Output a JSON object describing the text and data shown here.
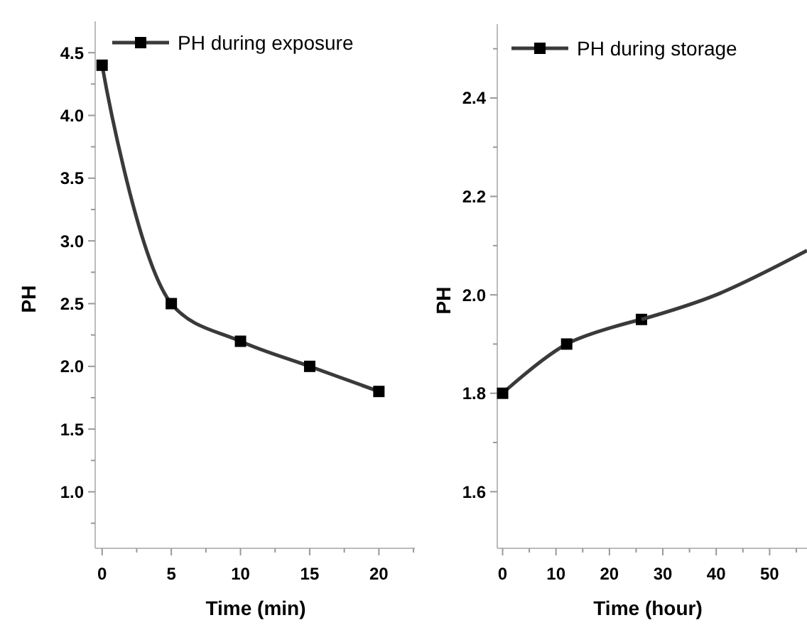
{
  "chart_data": [
    {
      "type": "line",
      "xlabel": "Time (min)",
      "ylabel": "PH",
      "legend": "top",
      "marker": "square",
      "line_style": "solid",
      "xlim": [
        -0.5,
        22.6
      ],
      "xticks": [
        0,
        {
          "value": 2.5,
          "label": null
        },
        5,
        {
          "value": 7.5,
          "label": null
        },
        10,
        {
          "value": 12.5,
          "label": null
        },
        15,
        {
          "value": 17.5,
          "label": null
        },
        20,
        {
          "value": 22.5,
          "label": null
        }
      ],
      "ylim": [
        0.55,
        4.75
      ],
      "yticks": [
        {
          "value": 1,
          "label": "1.0"
        },
        {
          "value": 0.75,
          "label": null
        },
        {
          "value": 1.25,
          "label": null
        },
        1.5,
        {
          "value": 1.75,
          "label": null
        },
        {
          "value": 2,
          "label": "2.0"
        },
        {
          "value": 2.25,
          "label": null
        },
        2.5,
        {
          "value": 2.75,
          "label": null
        },
        {
          "value": 3,
          "label": "3.0"
        },
        {
          "value": 3.25,
          "label": null
        },
        3.5,
        {
          "value": 3.75,
          "label": null
        },
        {
          "value": 4,
          "label": "4.0"
        },
        {
          "value": 4.25,
          "label": null
        },
        4.5
      ],
      "series": [
        {
          "name": "PH during exposure",
          "color": "#3a3a3a",
          "x": [
            0,
            5,
            10,
            15,
            20
          ],
          "values": [
            4.4,
            2.5,
            2.2,
            2.0,
            1.8
          ]
        }
      ]
    },
    {
      "type": "line",
      "xlabel": "Time (hour)",
      "ylabel": "PH",
      "legend": "top",
      "marker": "square",
      "line_style": "solid",
      "xlim": [
        -1,
        57
      ],
      "xticks": [
        0,
        {
          "value": 5,
          "label": null
        },
        10,
        {
          "value": 15,
          "label": null
        },
        20,
        {
          "value": 25,
          "label": null
        },
        30,
        {
          "value": 35,
          "label": null
        },
        40,
        {
          "value": 45,
          "label": null
        },
        50,
        {
          "value": 55,
          "label": null
        }
      ],
      "ylim": [
        1.485,
        2.55
      ],
      "yticks": [
        1.6,
        {
          "value": 1.7,
          "label": null
        },
        1.8,
        {
          "value": 1.9,
          "label": null
        },
        {
          "value": 2,
          "label": "2.0"
        },
        {
          "value": 2.1,
          "label": null
        },
        2.2,
        {
          "value": 2.3,
          "label": null
        },
        2.4,
        {
          "value": 2.5,
          "label": null
        }
      ],
      "series": [
        {
          "name": "PH during storage",
          "color": "#3a3a3a",
          "x": [
            0,
            12,
            26
          ],
          "values": [
            1.8,
            1.9,
            1.95
          ]
        },
        {
          "color": "#3a3a3a",
          "marker": "none",
          "x": [
            26,
            40,
            57
          ],
          "values": [
            1.95,
            2.0,
            2.09
          ]
        }
      ]
    }
  ]
}
